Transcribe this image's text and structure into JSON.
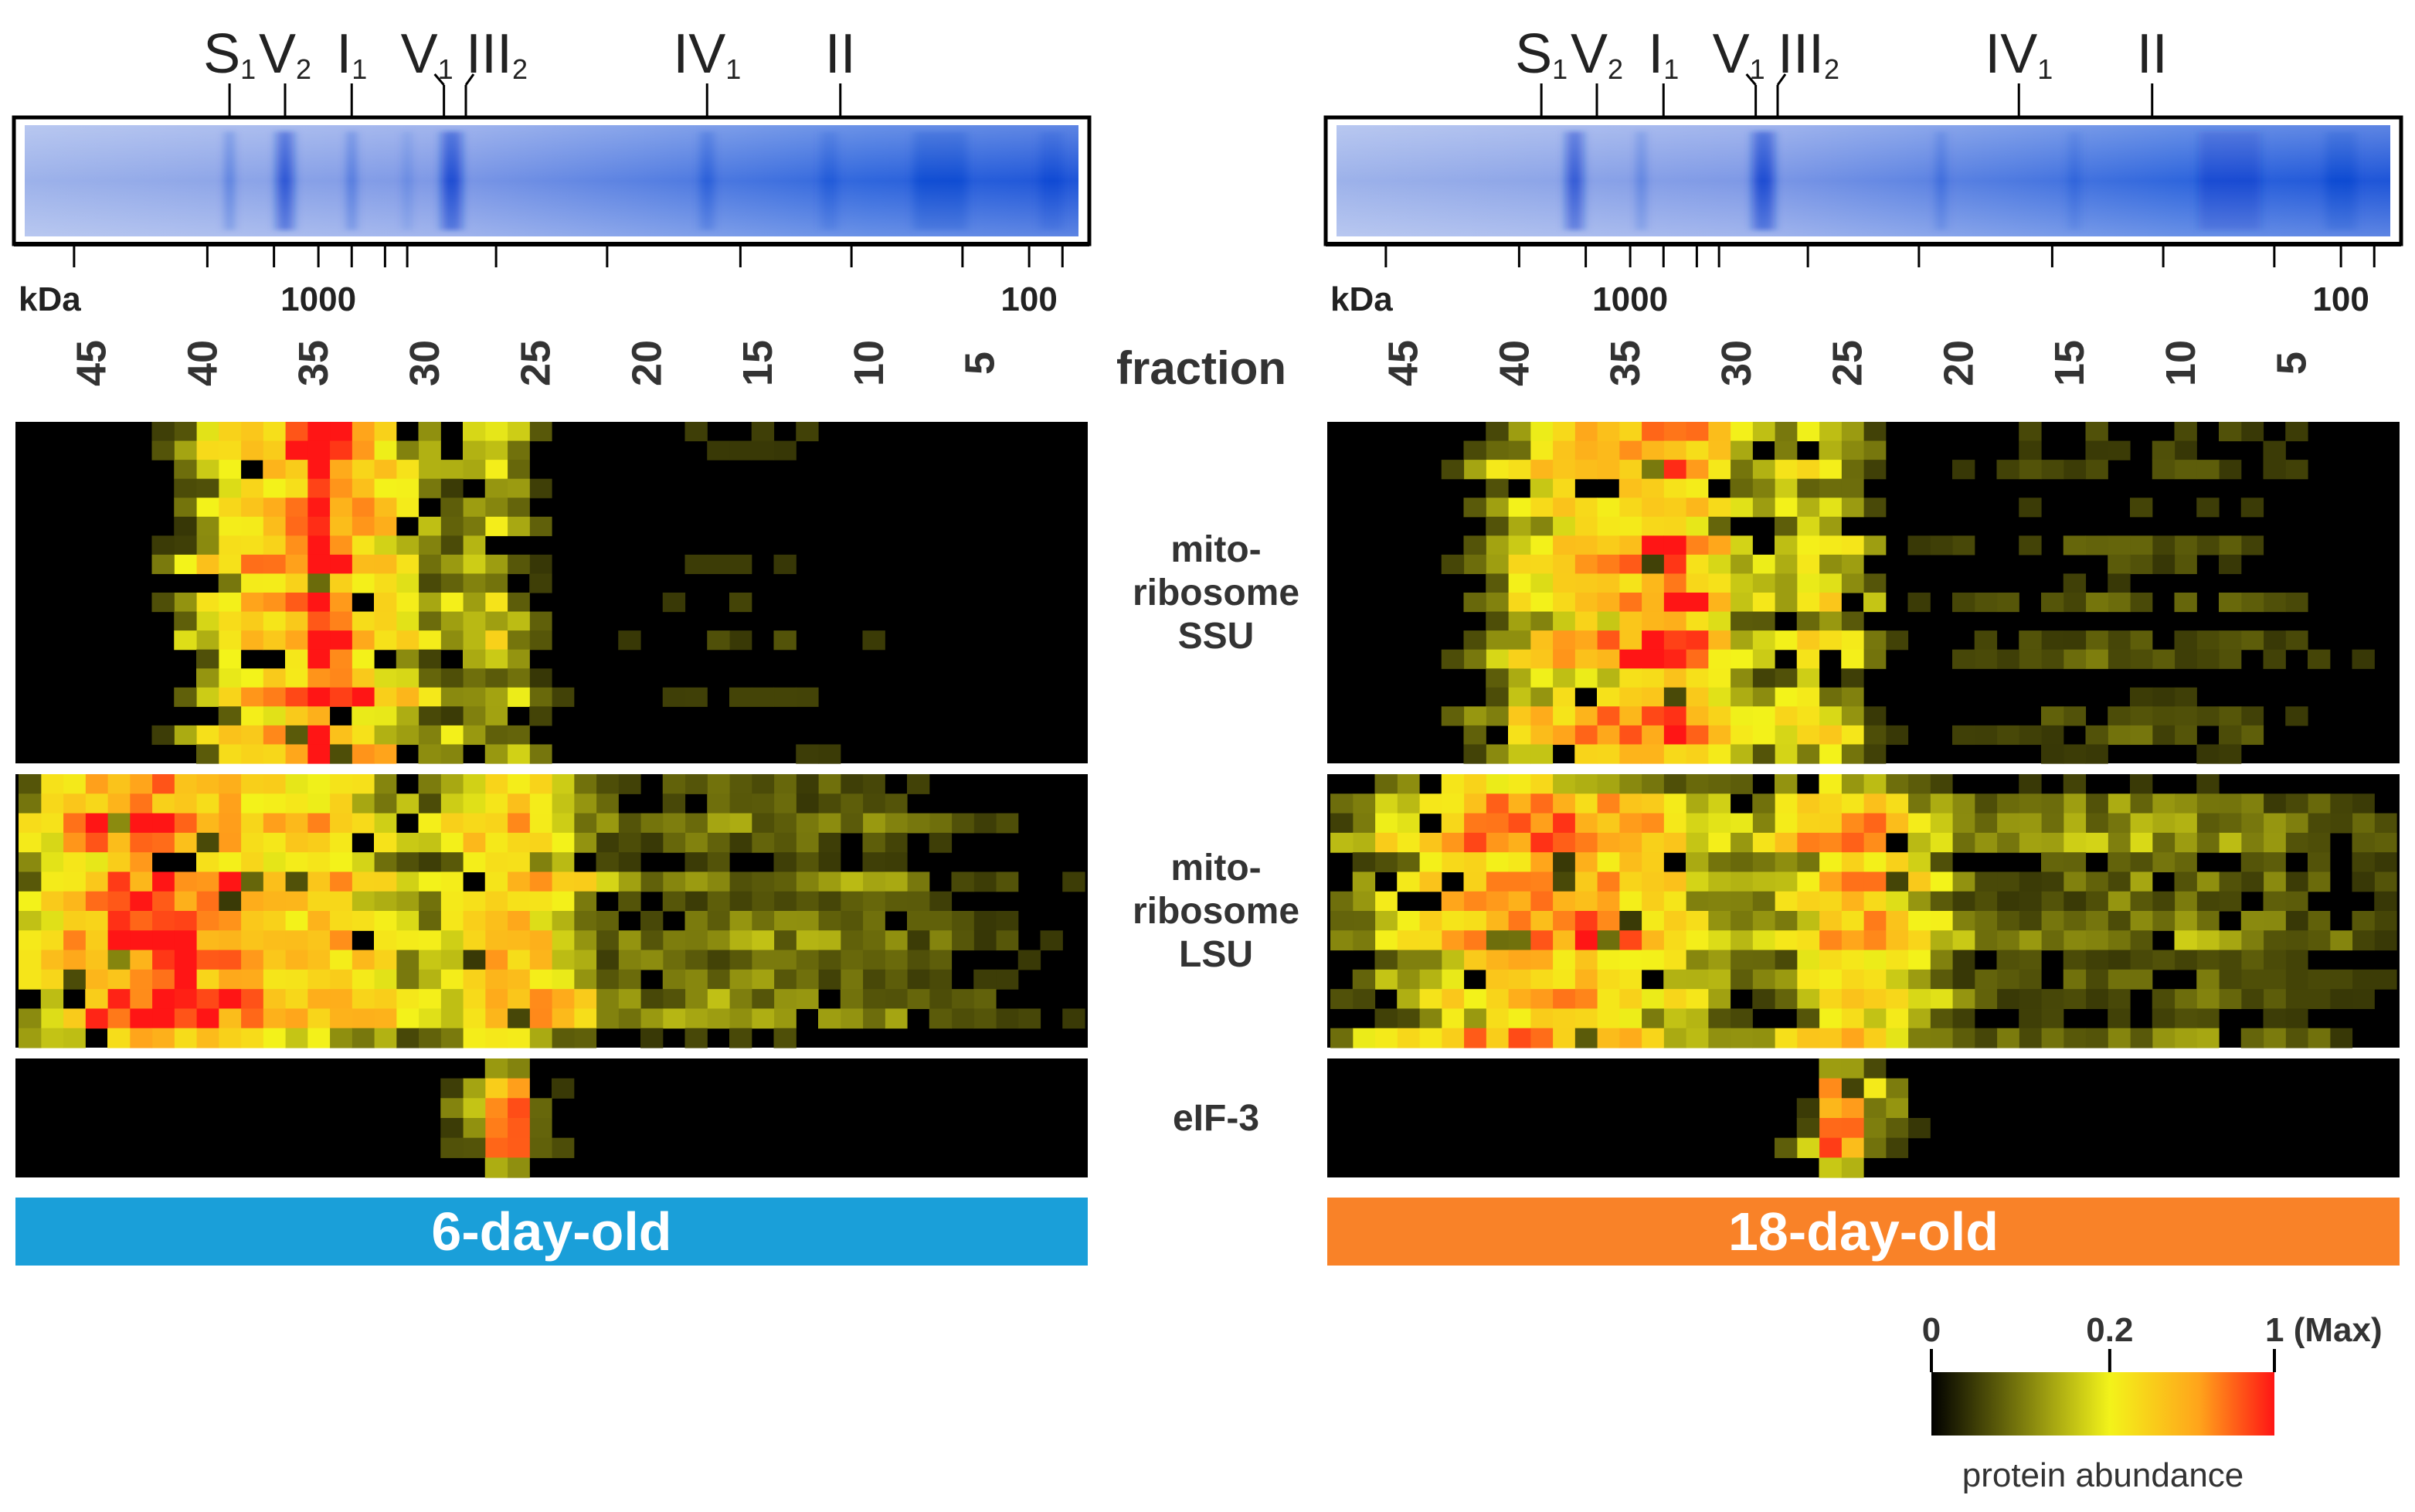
{
  "chart_data": {
    "type": "heatmap",
    "fraction_axis": {
      "label": "fraction",
      "ticks": [
        45,
        40,
        35,
        30,
        25,
        20,
        15,
        10,
        5
      ],
      "n_fractions": 48
    },
    "kda_axis": {
      "label": "kDa",
      "tick_labels": [
        "1000",
        "100"
      ]
    },
    "complex_bands": [
      {
        "main": "S",
        "sub": "1",
        "fraction": 39.0
      },
      {
        "main": "V",
        "sub": "2",
        "fraction": 36.5
      },
      {
        "main": "I",
        "sub": "1",
        "fraction": 33.5
      },
      {
        "main": "V",
        "sub": "1",
        "fraction": 29.0
      },
      {
        "main": "III",
        "sub": "2",
        "fraction": 28.5
      },
      {
        "main": "IV",
        "sub": "1",
        "fraction": 17.5
      },
      {
        "main": "II",
        "sub": "",
        "fraction": 11.5
      }
    ],
    "groups": [
      {
        "key": "ssu",
        "label_lines": [
          "mito-",
          "ribosome",
          "SSU"
        ],
        "rows": 18
      },
      {
        "key": "lsu",
        "label_lines": [
          "mito-",
          "ribosome",
          "LSU"
        ],
        "rows": 14
      },
      {
        "key": "eif3",
        "label_lines": [
          "eIF-3"
        ],
        "rows": 6
      }
    ],
    "panels": [
      {
        "title": "6-day-old",
        "title_color": "#1A9FD9",
        "profiles": {
          "ssu": [
            {
              "center": 35.0,
              "width": 0.5,
              "amp": 1.0
            },
            {
              "center": 34.2,
              "width": 2.2,
              "amp": 0.62
            },
            {
              "center": 38.2,
              "width": 2.0,
              "amp": 0.3
            },
            {
              "center": 27.5,
              "width": 1.3,
              "amp": 0.2
            },
            {
              "center": 15.0,
              "width": 7.0,
              "amp": 0.04
            }
          ],
          "lsu": [
            {
              "center": 42.0,
              "width": 3.2,
              "amp": 0.85
            },
            {
              "center": 34.0,
              "width": 2.5,
              "amp": 0.35
            },
            {
              "center": 26.0,
              "width": 1.8,
              "amp": 0.42
            },
            {
              "center": 14.0,
              "width": 8.0,
              "amp": 0.1
            }
          ],
          "eif3": [
            {
              "center": 26.5,
              "width": 0.4,
              "amp": 1.0
            },
            {
              "center": 26.5,
              "width": 1.8,
              "amp": 0.15
            }
          ]
        }
      },
      {
        "title": "18-day-old",
        "title_color": "#F98228",
        "profiles": {
          "ssu": [
            {
              "center": 35.5,
              "width": 3.2,
              "amp": 0.55
            },
            {
              "center": 32.5,
              "width": 1.3,
              "amp": 0.35
            },
            {
              "center": 26.5,
              "width": 1.5,
              "amp": 0.25
            },
            {
              "center": 12.0,
              "width": 8.0,
              "amp": 0.06
            }
          ],
          "lsu": [
            {
              "center": 39.0,
              "width": 4.5,
              "amp": 0.62
            },
            {
              "center": 25.0,
              "width": 2.0,
              "amp": 0.45
            },
            {
              "center": 12.0,
              "width": 9.0,
              "amp": 0.1
            }
          ],
          "eif3": [
            {
              "center": 25.5,
              "width": 0.4,
              "amp": 1.0
            },
            {
              "center": 25.0,
              "width": 1.6,
              "amp": 0.18
            }
          ]
        }
      }
    ],
    "colorbar": {
      "title": "protein abundance",
      "ticks": [
        {
          "label": "0",
          "value": 0.0
        },
        {
          "label": "0.2",
          "value": 0.2
        },
        {
          "label": "1 (Max)",
          "value": 1.0
        }
      ],
      "colors": [
        "#000000",
        "#F3F31A",
        "#FFA41B",
        "#FF1515"
      ]
    },
    "gel_colors": {
      "background": "#6E8EE2",
      "band": "#0A3FCF"
    }
  }
}
